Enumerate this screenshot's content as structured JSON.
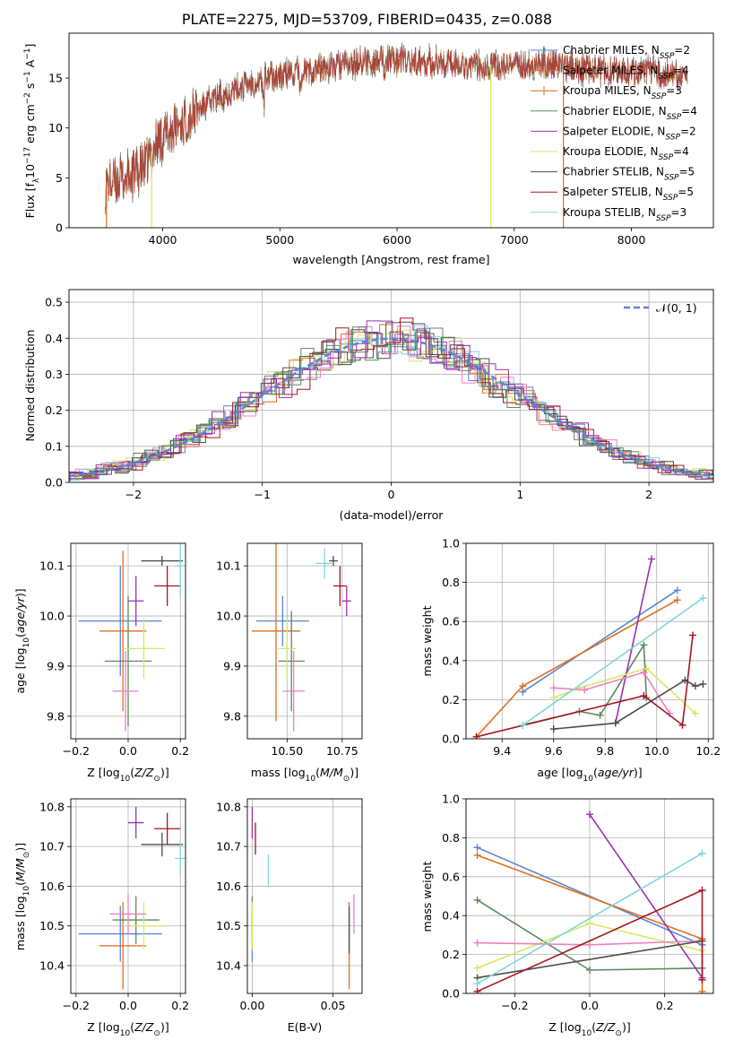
{
  "figure_title": "PLATE=2275, MJD=53709, FIBERID=0435, z=0.088",
  "colors": {
    "blue": "#5b84d6",
    "orange": "#de6f1f",
    "green": "#5d8a5d",
    "purple": "#9b30b0",
    "yellow": "#d6e861",
    "pink": "#ee80c0",
    "gray": "#4d4d4d",
    "red": "#a31621",
    "cyan": "#80d6dc"
  },
  "chart_data": [
    {
      "type": "line",
      "name": "spectrum",
      "xlabel": "wavelength [Angstrom, rest frame]",
      "ylabel": "Flux [f",
      "xlim": [
        3200,
        8700
      ],
      "ylim": [
        0,
        19.5
      ],
      "xticks": [
        4000,
        5000,
        6000,
        7000,
        8000
      ],
      "yticks": [
        0,
        5,
        10,
        15
      ],
      "grid": false,
      "legend_position": "top-right",
      "continuum": [
        [
          3520,
          4.6
        ],
        [
          3700,
          5.2
        ],
        [
          3850,
          6.3
        ],
        [
          3950,
          8.8
        ],
        [
          4100,
          10.2
        ],
        [
          4300,
          12.0
        ],
        [
          4500,
          13.4
        ],
        [
          4700,
          14.4
        ],
        [
          4900,
          15.2
        ],
        [
          5100,
          15.6
        ],
        [
          5300,
          16.0
        ],
        [
          5500,
          16.3
        ],
        [
          5700,
          16.7
        ],
        [
          5900,
          17.0
        ],
        [
          6100,
          16.8
        ],
        [
          6300,
          16.7
        ],
        [
          6500,
          16.6
        ],
        [
          6700,
          16.4
        ],
        [
          6900,
          16.3
        ],
        [
          7100,
          16.4
        ],
        [
          7300,
          16.5
        ],
        [
          7500,
          16.3
        ],
        [
          7800,
          15.9
        ],
        [
          8100,
          15.7
        ],
        [
          8350,
          15.4
        ],
        [
          8480,
          15.2
        ]
      ],
      "spectrum_range": [
        3510,
        8480
      ],
      "spikes": [
        {
          "x": 3520,
          "color": "orange"
        },
        {
          "x": 3905,
          "color": "yellow"
        },
        {
          "x": 6800,
          "color": "yellow"
        },
        {
          "x": 7420,
          "color": "orange"
        }
      ],
      "series": [
        {
          "label": "Chabrier MILES, N",
          "sub": "SSP",
          "n": "=2",
          "color": "blue"
        },
        {
          "label": "Salpeter MILES, N",
          "sub": "SSP",
          "n": "=4",
          "color": "orange"
        },
        {
          "label": "Kroupa MILES, N",
          "sub": "SSP",
          "n": "=3",
          "color": "orange"
        },
        {
          "label": "Chabrier ELODIE, N",
          "sub": "SSP",
          "n": "=4",
          "color": "green"
        },
        {
          "label": "Salpeter ELODIE, N",
          "sub": "SSP",
          "n": "=2",
          "color": "purple"
        },
        {
          "label": "Kroupa ELODIE, N",
          "sub": "SSP",
          "n": "=4",
          "color": "yellow"
        },
        {
          "label": "Chabrier STELIB, N",
          "sub": "SSP",
          "n": "=5",
          "color": "gray"
        },
        {
          "label": "Salpeter STELIB, N",
          "sub": "SSP",
          "n": "=5",
          "color": "red"
        },
        {
          "label": "Kroupa STELIB, N",
          "sub": "SSP",
          "n": "=3",
          "color": "cyan"
        }
      ]
    },
    {
      "type": "histogram",
      "name": "residuals",
      "xlabel": "(data-model)/error",
      "ylabel": "Normed distribution",
      "xlim": [
        -2.5,
        2.5
      ],
      "ylim": [
        0,
        0.535
      ],
      "xticks": [
        -2,
        -1,
        0,
        1,
        2
      ],
      "yticks": [
        0,
        0.1,
        0.2,
        0.3,
        0.4,
        0.5
      ],
      "grid": true,
      "bin_width": 0.1,
      "legend_position": "top-right",
      "legend_label": "𝒩(0, 1)",
      "series_colors": [
        "blue",
        "orange",
        "green",
        "purple",
        "yellow",
        "pink",
        "gray",
        "red",
        "cyan",
        "gray",
        "green",
        "purple"
      ]
    },
    {
      "type": "errorbar",
      "name": "age-vs-Z",
      "xlabel": "Z [log",
      "ylabel": "age  [log",
      "xlim": [
        -0.22,
        0.22
      ],
      "ylim": [
        9.755,
        10.145
      ],
      "xticks": [
        -0.2,
        0.0,
        0.2
      ],
      "yticks": [
        9.8,
        9.9,
        10.0,
        10.1
      ],
      "points": [
        {
          "x": -0.03,
          "y": 9.99,
          "xerr": 0.16,
          "yerr": 0.11,
          "color": "blue"
        },
        {
          "x": -0.02,
          "y": 9.97,
          "xerr": 0.09,
          "yerr": 0.16,
          "color": "orange"
        },
        {
          "x": 0.0,
          "y": 9.91,
          "xerr": 0.09,
          "yerr": 0.13,
          "color": "green"
        },
        {
          "x": 0.03,
          "y": 10.03,
          "xerr": 0.03,
          "yerr": 0.05,
          "color": "purple"
        },
        {
          "x": 0.06,
          "y": 9.935,
          "xerr": 0.08,
          "yerr": 0.06,
          "color": "yellow"
        },
        {
          "x": -0.01,
          "y": 9.85,
          "xerr": 0.05,
          "yerr": 0.08,
          "color": "pink"
        },
        {
          "x": 0.13,
          "y": 10.11,
          "xerr": 0.08,
          "yerr": 0.01,
          "color": "gray"
        },
        {
          "x": 0.15,
          "y": 10.06,
          "xerr": 0.05,
          "yerr": 0.04,
          "color": "red"
        },
        {
          "x": 0.2,
          "y": 10.1,
          "xerr": 0.02,
          "yerr": 0.06,
          "color": "cyan"
        }
      ]
    },
    {
      "type": "errorbar",
      "name": "age-vs-mass",
      "xlabel": "mass [log",
      "ylabel": "",
      "xlim": [
        10.32,
        10.84
      ],
      "ylim": [
        9.755,
        10.145
      ],
      "xticks": [
        10.5,
        10.75
      ],
      "yticks": [
        9.8,
        9.9,
        10.0,
        10.1
      ],
      "points": [
        {
          "x": 10.48,
          "y": 9.99,
          "xerr": 0.12,
          "yerr": 0.05,
          "color": "blue"
        },
        {
          "x": 10.45,
          "y": 9.97,
          "xerr": 0.11,
          "yerr": 0.18,
          "color": "orange"
        },
        {
          "x": 10.52,
          "y": 9.91,
          "xerr": 0.06,
          "yerr": 0.1,
          "color": "green"
        },
        {
          "x": 10.77,
          "y": 10.03,
          "xerr": 0.02,
          "yerr": 0.03,
          "color": "purple"
        },
        {
          "x": 10.5,
          "y": 9.935,
          "xerr": 0.04,
          "yerr": 0.06,
          "color": "yellow"
        },
        {
          "x": 10.53,
          "y": 9.85,
          "xerr": 0.05,
          "yerr": 0.08,
          "color": "pink"
        },
        {
          "x": 10.71,
          "y": 10.11,
          "xerr": 0.02,
          "yerr": 0.01,
          "color": "gray"
        },
        {
          "x": 10.74,
          "y": 10.06,
          "xerr": 0.03,
          "yerr": 0.04,
          "color": "red"
        },
        {
          "x": 10.67,
          "y": 10.105,
          "xerr": 0.04,
          "yerr": 0.03,
          "color": "cyan"
        }
      ]
    },
    {
      "type": "line",
      "name": "weight-vs-age",
      "xlabel": "age  [log",
      "ylabel": "mass weight",
      "xlim": [
        9.26,
        10.22
      ],
      "ylim": [
        0,
        1.0
      ],
      "xticks": [
        9.4,
        9.6,
        9.8,
        10.0,
        10.2
      ],
      "yticks": [
        0,
        0.2,
        0.4,
        0.6,
        0.8,
        1.0
      ],
      "series": [
        {
          "color": "blue",
          "x": [
            9.48,
            10.08
          ],
          "y": [
            0.24,
            0.76
          ]
        },
        {
          "color": "orange",
          "x": [
            9.3,
            9.48,
            10.08
          ],
          "y": [
            0.01,
            0.27,
            0.71
          ]
        },
        {
          "color": "green",
          "x": [
            9.48,
            9.7,
            9.78,
            9.95,
            9.96
          ],
          "y": [
            0.07,
            0.14,
            0.12,
            0.48,
            0.21
          ]
        },
        {
          "color": "purple",
          "x": [
            9.84,
            9.98
          ],
          "y": [
            0.08,
            0.92
          ]
        },
        {
          "color": "yellow",
          "x": [
            9.6,
            9.7,
            9.96,
            10.15
          ],
          "y": [
            0.21,
            0.26,
            0.36,
            0.13
          ]
        },
        {
          "color": "pink",
          "x": [
            9.6,
            9.72,
            9.95,
            10.05
          ],
          "y": [
            0.26,
            0.25,
            0.34,
            0.13
          ]
        },
        {
          "color": "gray",
          "x": [
            9.6,
            9.84,
            10.11,
            10.15,
            10.18
          ],
          "y": [
            0.05,
            0.08,
            0.3,
            0.27,
            0.28
          ]
        },
        {
          "color": "red",
          "x": [
            9.3,
            9.95,
            10.1,
            10.14
          ],
          "y": [
            0.01,
            0.22,
            0.07,
            0.53
          ]
        },
        {
          "color": "cyan",
          "x": [
            9.48,
            10.18
          ],
          "y": [
            0.07,
            0.72
          ]
        }
      ]
    },
    {
      "type": "errorbar",
      "name": "mass-vs-Z",
      "xlabel": "Z [log",
      "ylabel": "mass [log",
      "xlim": [
        -0.22,
        0.22
      ],
      "ylim": [
        10.33,
        10.82
      ],
      "xticks": [
        -0.2,
        0.0,
        0.2
      ],
      "yticks": [
        10.4,
        10.5,
        10.6,
        10.7,
        10.8
      ],
      "points": [
        {
          "x": -0.03,
          "y": 10.48,
          "xerr": 0.16,
          "yerr": 0.07,
          "color": "blue"
        },
        {
          "x": -0.02,
          "y": 10.45,
          "xerr": 0.09,
          "yerr": 0.11,
          "color": "orange"
        },
        {
          "x": 0.03,
          "y": 10.515,
          "xerr": 0.09,
          "yerr": 0.06,
          "color": "green"
        },
        {
          "x": 0.03,
          "y": 10.76,
          "xerr": 0.03,
          "yerr": 0.04,
          "color": "purple"
        },
        {
          "x": 0.06,
          "y": 10.5,
          "xerr": 0.08,
          "yerr": 0.06,
          "color": "yellow"
        },
        {
          "x": 0.0,
          "y": 10.53,
          "xerr": 0.07,
          "yerr": 0.05,
          "color": "pink"
        },
        {
          "x": 0.13,
          "y": 10.705,
          "xerr": 0.08,
          "yerr": 0.03,
          "color": "gray"
        },
        {
          "x": 0.15,
          "y": 10.745,
          "xerr": 0.05,
          "yerr": 0.04,
          "color": "red"
        },
        {
          "x": 0.2,
          "y": 10.67,
          "xerr": 0.02,
          "yerr": 0.04,
          "color": "cyan"
        }
      ]
    },
    {
      "type": "errorbar",
      "name": "mass-vs-EBV",
      "xlabel": "E(B-V)",
      "ylabel": "",
      "xlim": [
        -0.003,
        0.068
      ],
      "ylim": [
        10.33,
        10.82
      ],
      "xticks": [
        0.0,
        0.05
      ],
      "yticks": [
        10.4,
        10.5,
        10.6,
        10.7,
        10.8
      ],
      "points": [
        {
          "x": 0.0,
          "y": 10.48,
          "xerr": 0,
          "yerr": 0.07,
          "color": "blue"
        },
        {
          "x": 0.06,
          "y": 10.45,
          "xerr": 0,
          "yerr": 0.11,
          "color": "orange"
        },
        {
          "x": 0.0,
          "y": 10.515,
          "xerr": 0,
          "yerr": 0.06,
          "color": "green"
        },
        {
          "x": 0.0,
          "y": 10.76,
          "xerr": 0,
          "yerr": 0.04,
          "color": "purple"
        },
        {
          "x": 0.0,
          "y": 10.5,
          "xerr": 0,
          "yerr": 0.06,
          "color": "yellow"
        },
        {
          "x": 0.063,
          "y": 10.53,
          "xerr": 0,
          "yerr": 0.05,
          "color": "pink"
        },
        {
          "x": 0.06,
          "y": 10.49,
          "xerr": 0,
          "yerr": 0.06,
          "color": "gray"
        },
        {
          "x": 0.002,
          "y": 10.72,
          "xerr": 0,
          "yerr": 0.04,
          "color": "red"
        },
        {
          "x": 0.01,
          "y": 10.64,
          "xerr": 0,
          "yerr": 0.04,
          "color": "cyan"
        }
      ]
    },
    {
      "type": "line",
      "name": "weight-vs-Z",
      "xlabel": "Z [log",
      "ylabel": "mass weight",
      "xlim": [
        -0.33,
        0.33
      ],
      "ylim": [
        0,
        1.0
      ],
      "xticks": [
        -0.2,
        0.0,
        0.2
      ],
      "yticks": [
        0,
        0.2,
        0.4,
        0.6,
        0.8,
        1.0
      ],
      "series": [
        {
          "color": "blue",
          "x": [
            -0.3,
            0.3
          ],
          "y": [
            0.75,
            0.25
          ]
        },
        {
          "color": "orange",
          "x": [
            -0.3,
            0.3,
            0.3
          ],
          "y": [
            0.71,
            0.28,
            0.01
          ]
        },
        {
          "color": "green",
          "x": [
            -0.3,
            0.0,
            0.3
          ],
          "y": [
            0.48,
            0.12,
            0.13
          ]
        },
        {
          "color": "purple",
          "x": [
            0.0,
            0.3
          ],
          "y": [
            0.92,
            0.08
          ]
        },
        {
          "color": "yellow",
          "x": [
            -0.3,
            0.0,
            0.3
          ],
          "y": [
            0.13,
            0.36,
            0.22
          ]
        },
        {
          "color": "pink",
          "x": [
            -0.3,
            0.0,
            0.3
          ],
          "y": [
            0.26,
            0.25,
            0.27
          ]
        },
        {
          "color": "gray",
          "x": [
            -0.3,
            0.3
          ],
          "y": [
            0.08,
            0.27
          ]
        },
        {
          "color": "red",
          "x": [
            -0.3,
            0.3,
            0.3
          ],
          "y": [
            0.01,
            0.53,
            0.07
          ]
        },
        {
          "color": "cyan",
          "x": [
            -0.3,
            0.3
          ],
          "y": [
            0.05,
            0.72
          ]
        }
      ]
    }
  ]
}
